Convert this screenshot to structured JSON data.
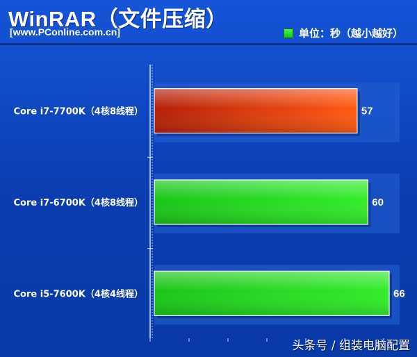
{
  "header": {
    "title": "WinRAR（文件压缩）",
    "source": "[www.PConline.com.cn]",
    "legend_label": "单位：秒（越小越好）"
  },
  "watermark": "头条号 / 组装电脑配置",
  "colors": {
    "background": "#0e3fae",
    "highlight_bar_start": "#b42008",
    "highlight_bar_end": "#ff5a12",
    "bar_start": "#19c516",
    "bar_end": "#33ec2a"
  },
  "chart_data": {
    "type": "bar",
    "orientation": "horizontal",
    "categories": [
      "Core i7-7700K（4核8线程）",
      "Core i7-6700K（4核8线程）",
      "Core i5-7600K（4核4线程）"
    ],
    "series": [
      {
        "values": [
          57,
          60,
          66
        ]
      }
    ],
    "highlight_index": 0,
    "xlim": [
      0,
      66
    ],
    "grid": true,
    "legend_position": "top-right"
  }
}
